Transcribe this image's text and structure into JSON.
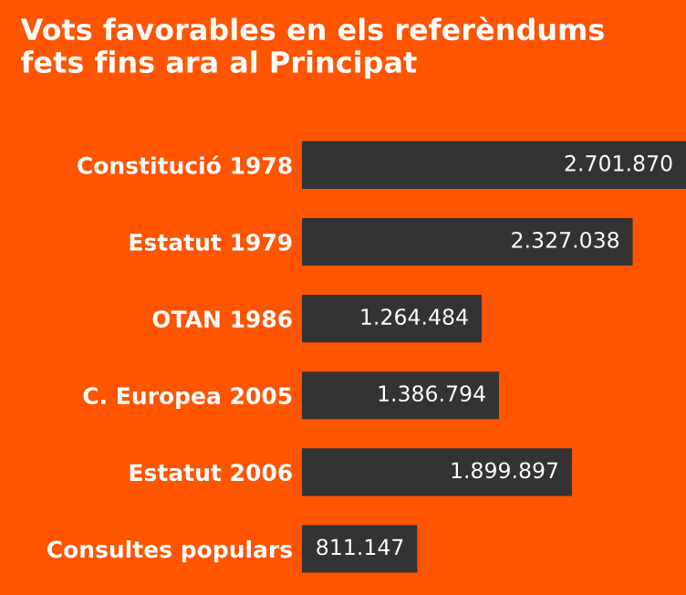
{
  "chart_data": {
    "type": "bar",
    "orientation": "horizontal",
    "title": "Vots favorables en els referèndums\nfets fins ara al Principat",
    "categories": [
      "Constitució 1978",
      "Estatut 1979",
      "OTAN 1986",
      "C. Europea 2005",
      "Estatut 2006",
      "Consultes populars"
    ],
    "values": [
      2701870,
      2327038,
      1264484,
      1386794,
      1899897,
      811147
    ],
    "value_labels": [
      "2.701.870",
      "2.327.038",
      "1.264.484",
      "1.386.794",
      "1.899.897",
      "811.147"
    ],
    "color": "#333333"
  }
}
